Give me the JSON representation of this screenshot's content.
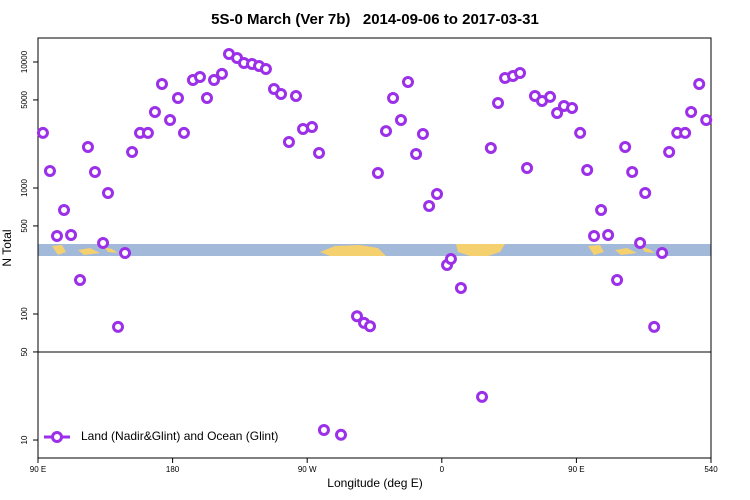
{
  "chart_data": {
    "type": "scatter",
    "title": "5S-0 March (Ver 7b)   2014-09-06 to 2017-03-31",
    "xlabel": "Longitude (deg E)",
    "ylabel": "N Total",
    "x": [
      93.3,
      98.0,
      102.7,
      107.4,
      112.1,
      118.1,
      123.4,
      128.1,
      133.5,
      136.8,
      143.5,
      148.2,
      152.9,
      158.2,
      163.5,
      168.2,
      172.9,
      178.3,
      183.6,
      187.6,
      193.6,
      198.3,
      203.0,
      207.7,
      213.0,
      217.7,
      223.1,
      227.7,
      233.1,
      237.8,
      242.4,
      247.8,
      252.5,
      257.8,
      262.5,
      267.2,
      273.2,
      277.9,
      281.2,
      292.6,
      303.3,
      308.0,
      312.0,
      317.3,
      322.7,
      327.4,
      332.7,
      337.4,
      342.8,
      347.4,
      351.5,
      356.8,
      363.5,
      366.1,
      372.8,
      386.9,
      392.8,
      397.6,
      402.3,
      407.6,
      412.3,
      417.0,
      422.3,
      427.0,
      432.4,
      437.1,
      441.7,
      447.1,
      452.5,
      457.2,
      461.8,
      466.5,
      471.2,
      477.2,
      482.6,
      487.3,
      492.6,
      496.0,
      502.0,
      507.3,
      512.0,
      517.4,
      522.7,
      526.7,
      532.1,
      536.8
    ],
    "series": [
      {
        "name": "Land (Nadir&Glint) and Ocean (Glint)",
        "color": "#9b30e8",
        "values": [
          2735,
          1365,
          416,
          669,
          424,
          186,
          2115,
          1340,
          366,
          913,
          79,
          305,
          1931,
          2735,
          2735,
          4010,
          6690,
          3465,
          5180,
          2735,
          7195,
          7600,
          5180,
          7195,
          8040,
          11570,
          10760,
          9820,
          9640,
          9290,
          8790,
          6110,
          5570,
          2317,
          5370,
          2940,
          3050,
          1897,
          12,
          11,
          96,
          85,
          80,
          1315,
          2830,
          5180,
          3465,
          6940,
          1862,
          2685,
          720,
          896,
          245,
          273,
          161,
          22,
          2076,
          4730,
          7460,
          7740,
          8180,
          1442,
          5370,
          4900,
          5280,
          3935,
          4475,
          4315,
          2735,
          1390,
          416,
          669,
          424,
          186,
          2115,
          1340,
          366,
          913,
          79,
          305,
          1931,
          2735,
          2735,
          4010,
          6690,
          3465
        ]
      }
    ],
    "xlim": [
      90,
      540
    ],
    "xticks": [
      {
        "value": 90,
        "label": "90 E"
      },
      180,
      {
        "value": 270,
        "label": "90 W"
      },
      {
        "value": 360,
        "label": "0"
      },
      {
        "value": 450,
        "label": "90 E"
      },
      540
    ],
    "ylim": [
      7.2,
      15500
    ],
    "yticks": [
      10,
      50,
      100,
      500,
      1000,
      5000,
      10000
    ],
    "log_y": true,
    "reference_line": 50,
    "legend": "bottom left"
  }
}
